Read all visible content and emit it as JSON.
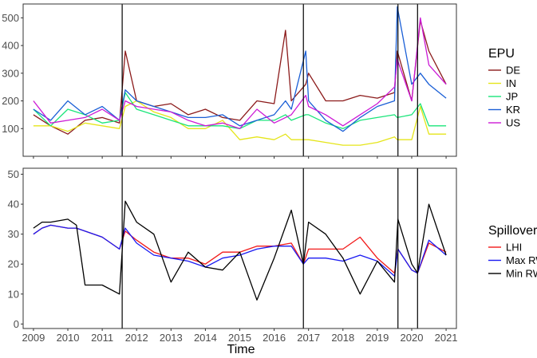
{
  "chart_data": [
    {
      "type": "line",
      "panel": "top",
      "title": "",
      "xlabel": "",
      "ylabel": "",
      "ylim": [
        0,
        550
      ],
      "yticks": [
        100,
        200,
        300,
        400,
        500
      ],
      "xlim": [
        2008.7,
        2021.3
      ],
      "legend": {
        "title": "EPU",
        "placement": "right"
      },
      "vlines": [
        2011.58,
        2016.85,
        2019.6,
        2020.17
      ],
      "x": [
        2009.0,
        2009.5,
        2010.0,
        2010.5,
        2011.0,
        2011.5,
        2011.67,
        2012.0,
        2012.5,
        2013.0,
        2013.5,
        2014.0,
        2014.5,
        2015.0,
        2015.5,
        2016.0,
        2016.33,
        2016.5,
        2016.92,
        2017.0,
        2017.5,
        2018.0,
        2018.5,
        2019.0,
        2019.5,
        2019.58,
        2020.0,
        2020.25,
        2020.5,
        2021.0
      ],
      "series": [
        {
          "name": "DE",
          "color": "#8b1a1a",
          "values": [
            150,
            110,
            80,
            130,
            140,
            120,
            380,
            200,
            180,
            190,
            150,
            170,
            140,
            130,
            200,
            190,
            455,
            200,
            260,
            300,
            200,
            200,
            220,
            210,
            230,
            380,
            200,
            490,
            380,
            260
          ]
        },
        {
          "name": "IN",
          "color": "#e5e51a",
          "values": [
            110,
            110,
            90,
            120,
            110,
            100,
            180,
            200,
            160,
            140,
            100,
            100,
            130,
            60,
            70,
            60,
            80,
            60,
            60,
            60,
            50,
            40,
            40,
            50,
            70,
            60,
            60,
            180,
            80,
            80
          ]
        },
        {
          "name": "JP",
          "color": "#1ae57a",
          "values": [
            170,
            110,
            170,
            150,
            120,
            130,
            230,
            170,
            150,
            130,
            110,
            110,
            110,
            100,
            130,
            130,
            150,
            130,
            150,
            150,
            120,
            100,
            130,
            140,
            150,
            140,
            150,
            190,
            110,
            110
          ]
        },
        {
          "name": "KR",
          "color": "#1a5fd6",
          "values": [
            170,
            130,
            200,
            150,
            180,
            130,
            240,
            200,
            180,
            160,
            140,
            140,
            150,
            110,
            130,
            150,
            200,
            170,
            380,
            200,
            130,
            90,
            140,
            180,
            200,
            540,
            260,
            300,
            260,
            210
          ]
        },
        {
          "name": "US",
          "color": "#cc1ad6",
          "values": [
            200,
            120,
            130,
            140,
            170,
            130,
            200,
            180,
            170,
            160,
            130,
            110,
            120,
            100,
            170,
            120,
            140,
            150,
            220,
            180,
            150,
            110,
            150,
            190,
            250,
            350,
            200,
            500,
            330,
            260
          ]
        }
      ]
    },
    {
      "type": "line",
      "panel": "bottom",
      "title": "",
      "xlabel": "Time",
      "ylabel": "",
      "ylim": [
        -1.5,
        52
      ],
      "yticks": [
        0,
        10,
        20,
        30,
        40,
        50
      ],
      "xticks": [
        2009,
        2010,
        2011,
        2012,
        2013,
        2014,
        2015,
        2016,
        2017,
        2018,
        2019,
        2020,
        2021
      ],
      "xlim": [
        2008.7,
        2021.3
      ],
      "legend": {
        "title": "Spillover",
        "placement": "right"
      },
      "vlines": [
        2011.58,
        2016.85,
        2019.6,
        2020.17
      ],
      "x": [
        2009.0,
        2009.25,
        2009.5,
        2010.0,
        2010.25,
        2010.5,
        2011.0,
        2011.5,
        2011.67,
        2012.0,
        2012.5,
        2013.0,
        2013.5,
        2014.0,
        2014.5,
        2015.0,
        2015.5,
        2016.0,
        2016.5,
        2016.85,
        2017.0,
        2017.5,
        2018.0,
        2018.5,
        2019.0,
        2019.5,
        2019.6,
        2020.0,
        2020.17,
        2020.5,
        2021.0
      ],
      "series": [
        {
          "name": "LHI",
          "color": "#f21a1a",
          "values": [
            30,
            32,
            33,
            32,
            32,
            31,
            29,
            25,
            31,
            28,
            24,
            22,
            22,
            20,
            24,
            24,
            26,
            26,
            27,
            20,
            25,
            25,
            25,
            29,
            22,
            17,
            25,
            18,
            17,
            27,
            24
          ]
        },
        {
          "name": "Max RW",
          "color": "#1a1af2",
          "values": [
            30,
            32,
            33,
            32,
            32,
            31,
            29,
            25,
            32,
            27,
            23,
            22,
            21,
            19,
            22,
            23,
            25,
            26,
            26,
            20,
            22,
            22,
            21,
            23,
            21,
            16,
            25,
            18,
            17,
            28,
            23
          ]
        },
        {
          "name": "Min RW",
          "color": "#000000",
          "values": [
            32,
            34,
            34,
            35,
            33,
            13,
            13,
            10,
            41,
            34,
            30,
            14,
            24,
            19,
            18,
            24,
            8,
            22,
            38,
            20,
            34,
            30,
            22,
            10,
            21,
            14,
            35,
            20,
            17,
            40,
            23
          ]
        }
      ]
    }
  ]
}
